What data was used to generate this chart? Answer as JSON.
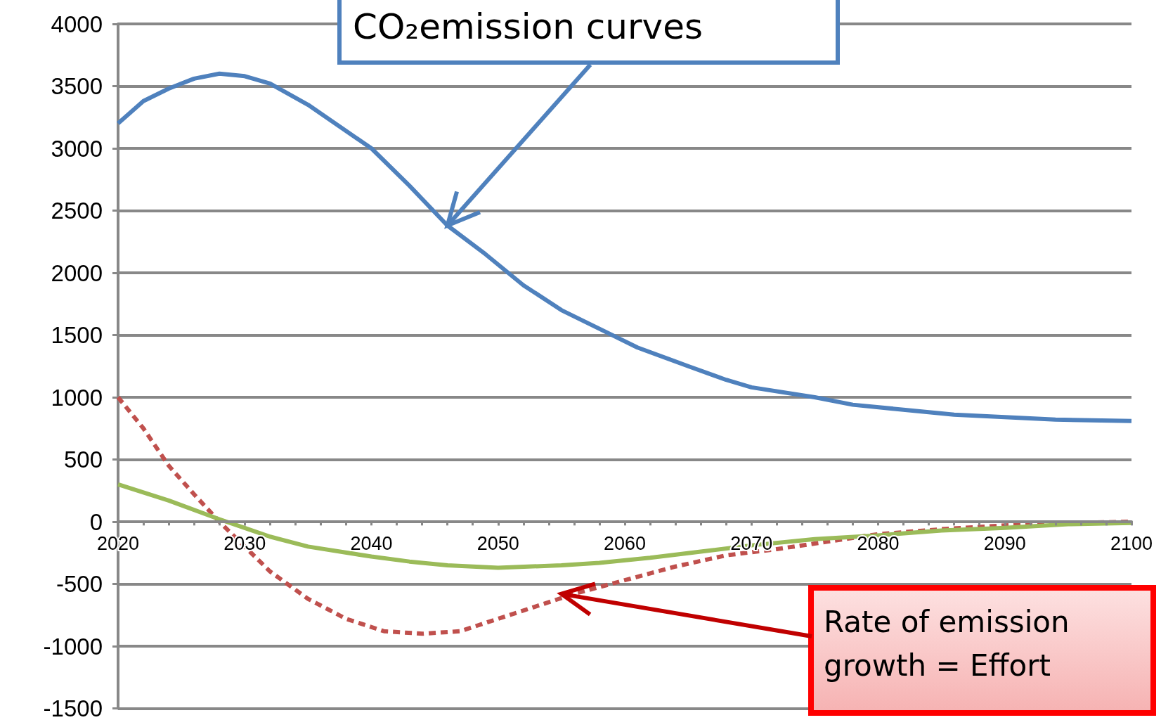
{
  "chart_data": {
    "type": "line",
    "annotations": [
      {
        "text": "CO₂emission curves",
        "x": 2046,
        "y": 2380
      },
      {
        "text": "Rate of emission growth = Effort",
        "x": 2055,
        "y": -580
      }
    ],
    "xlim": [
      2020,
      2100
    ],
    "xticks": [
      2020,
      2030,
      2040,
      2050,
      2060,
      2070,
      2080,
      2090,
      2100
    ],
    "ylim": [
      -1500,
      4000
    ],
    "yticks": [
      -1500,
      -1000,
      -500,
      0,
      500,
      1000,
      1500,
      2000,
      2500,
      3000,
      3500,
      4000
    ],
    "grid": "y",
    "marker": "none",
    "series": [
      {
        "color": "#4f81bd",
        "line_style": "solid",
        "x": [
          2020,
          2022,
          2024,
          2026,
          2028,
          2030,
          2032,
          2035,
          2040,
          2043,
          2046,
          2049,
          2052,
          2055,
          2058,
          2061,
          2065,
          2068,
          2070,
          2075,
          2078,
          2082,
          2086,
          2090,
          2094,
          2100
        ],
        "values": [
          3200,
          3380,
          3480,
          3560,
          3600,
          3580,
          3520,
          3350,
          3000,
          2700,
          2380,
          2150,
          1900,
          1700,
          1550,
          1400,
          1250,
          1140,
          1080,
          1000,
          940,
          900,
          860,
          840,
          820,
          810
        ]
      },
      {
        "color": "#c0504d",
        "line_style": "dashed",
        "x": [
          2020,
          2022,
          2024,
          2026,
          2028,
          2030,
          2032,
          2035,
          2038,
          2041,
          2044,
          2047,
          2050,
          2053,
          2056,
          2060,
          2064,
          2068,
          2072,
          2076,
          2080,
          2085,
          2090,
          2095,
          2100
        ],
        "values": [
          1000,
          750,
          450,
          220,
          0,
          -200,
          -400,
          -620,
          -780,
          -880,
          -900,
          -880,
          -780,
          -680,
          -580,
          -470,
          -360,
          -270,
          -220,
          -160,
          -100,
          -60,
          -30,
          -10,
          0
        ]
      },
      {
        "color": "#9bbb59",
        "line_style": "solid",
        "x": [
          2020,
          2024,
          2028,
          2030,
          2032,
          2035,
          2040,
          2043,
          2046,
          2050,
          2055,
          2058,
          2062,
          2066,
          2070,
          2075,
          2080,
          2085,
          2090,
          2095,
          2100
        ],
        "values": [
          300,
          170,
          20,
          -50,
          -120,
          -200,
          -280,
          -320,
          -350,
          -370,
          -350,
          -330,
          -290,
          -240,
          -190,
          -140,
          -110,
          -70,
          -50,
          -20,
          -10
        ]
      }
    ]
  }
}
